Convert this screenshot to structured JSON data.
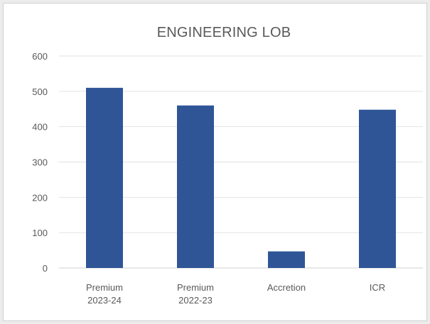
{
  "chart_data": {
    "type": "bar",
    "title": "ENGINEERING LOB",
    "categories": [
      [
        "Premium",
        "2023-24"
      ],
      [
        "Premium",
        "2022-23"
      ],
      [
        "Accretion"
      ],
      [
        "ICR"
      ]
    ],
    "values": [
      510,
      460,
      47,
      448
    ],
    "ylim": [
      0,
      600
    ],
    "yticks": [
      0,
      100,
      200,
      300,
      400,
      500,
      600
    ],
    "grid": true,
    "legend": "none",
    "bar_color": "#2f5597"
  }
}
